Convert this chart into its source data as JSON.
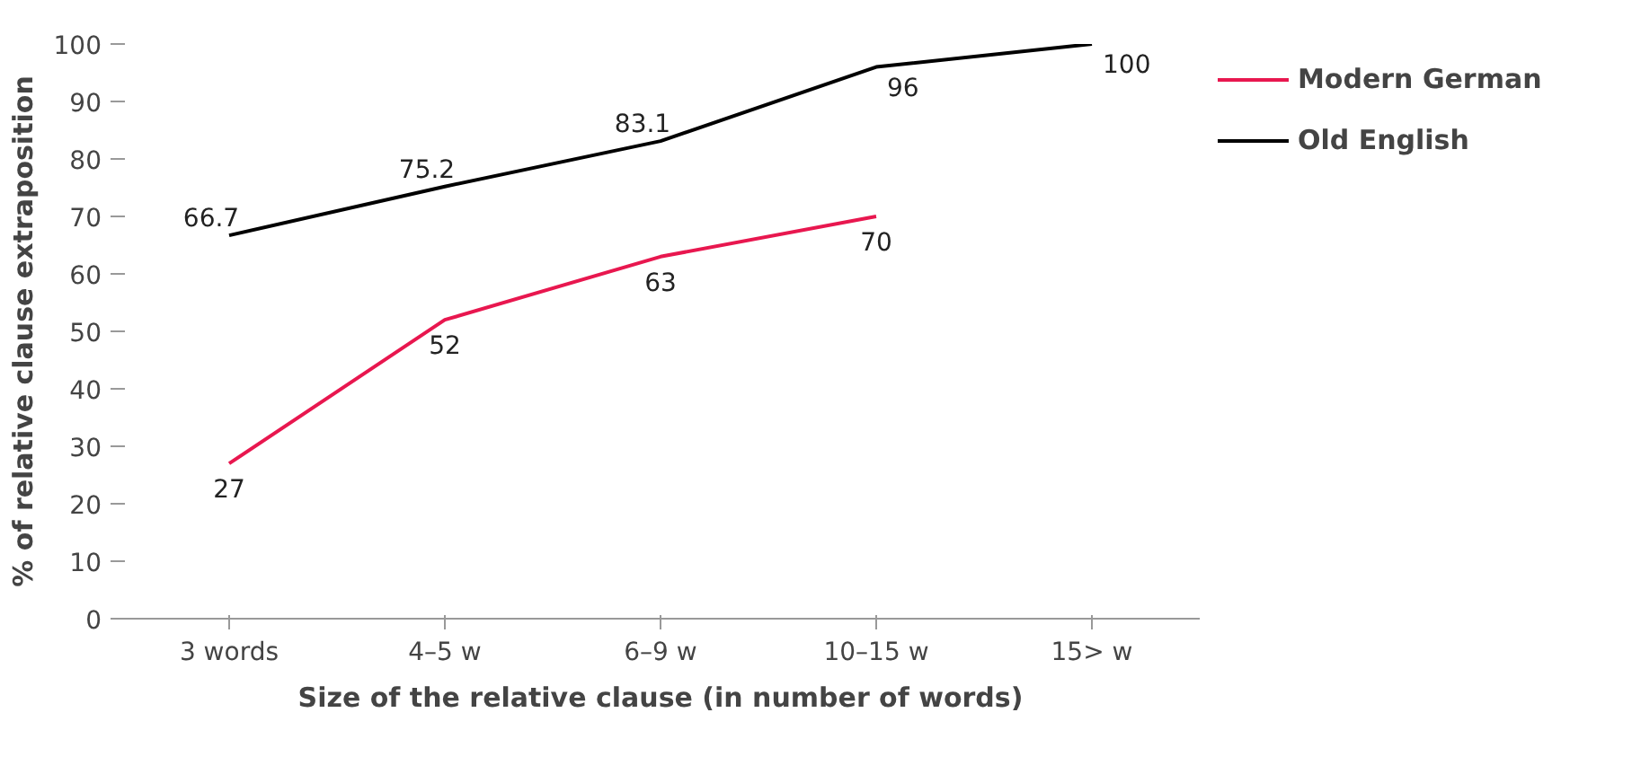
{
  "chart_data": {
    "type": "line",
    "xlabel": "Size of the relative clause (in number of words)",
    "ylabel": "% of relative clause extraposition",
    "categories": [
      "3 words",
      "4–5 w",
      "6–9 w",
      "10–15 w",
      "15> w"
    ],
    "series": [
      {
        "name": "Modern German",
        "color": "#e8174f",
        "values": [
          27,
          52,
          63,
          70,
          null
        ]
      },
      {
        "name": "Old English",
        "color": "#000000",
        "values": [
          66.7,
          75.2,
          83.1,
          96,
          100
        ]
      }
    ],
    "ylim": [
      0,
      100
    ],
    "yticks": [
      0,
      10,
      20,
      30,
      40,
      50,
      60,
      70,
      80,
      90,
      100
    ],
    "data_labels": true,
    "legend": "right",
    "grid": false,
    "marker": "none",
    "line_style": "solid"
  }
}
